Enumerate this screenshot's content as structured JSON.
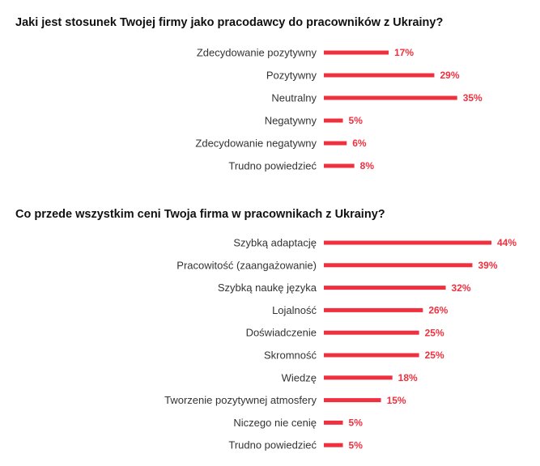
{
  "colors": {
    "bar": "#f0303f",
    "label_text": "#333333",
    "title_text": "#111111"
  },
  "chart_data": [
    {
      "type": "bar",
      "orientation": "horizontal",
      "title": "Jaki jest stosunek Twojej firmy jako pracodawcy do pracowników z Ukrainy?",
      "xlim": [
        0,
        50
      ],
      "grid": false,
      "legend": "none",
      "categories": [
        "Zdecydowanie pozytywny",
        "Pozytywny",
        "Neutralny",
        "Negatywny",
        "Zdecydowanie negatywny",
        "Trudno powiedzieć"
      ],
      "values": [
        17,
        29,
        35,
        5,
        6,
        8
      ],
      "value_labels": [
        "17%",
        "29%",
        "35%",
        "5%",
        "6%",
        "8%"
      ]
    },
    {
      "type": "bar",
      "orientation": "horizontal",
      "title": "Co przede wszystkim ceni Twoja firma w pracownikach z Ukrainy?",
      "xlim": [
        0,
        50
      ],
      "grid": false,
      "legend": "none",
      "categories": [
        "Szybką adaptację",
        "Pracowitość (zaangażowanie)",
        "Szybką naukę języka",
        "Lojalność",
        "Doświadczenie",
        "Skromność",
        "Wiedzę",
        "Tworzenie pozytywnej atmosfery",
        "Niczego nie cenię",
        "Trudno powiedzieć"
      ],
      "values": [
        44,
        39,
        32,
        26,
        25,
        25,
        18,
        15,
        5,
        5
      ],
      "value_labels": [
        "44%",
        "39%",
        "32%",
        "26%",
        "25%",
        "25%",
        "18%",
        "15%",
        "5%",
        "5%"
      ]
    }
  ]
}
